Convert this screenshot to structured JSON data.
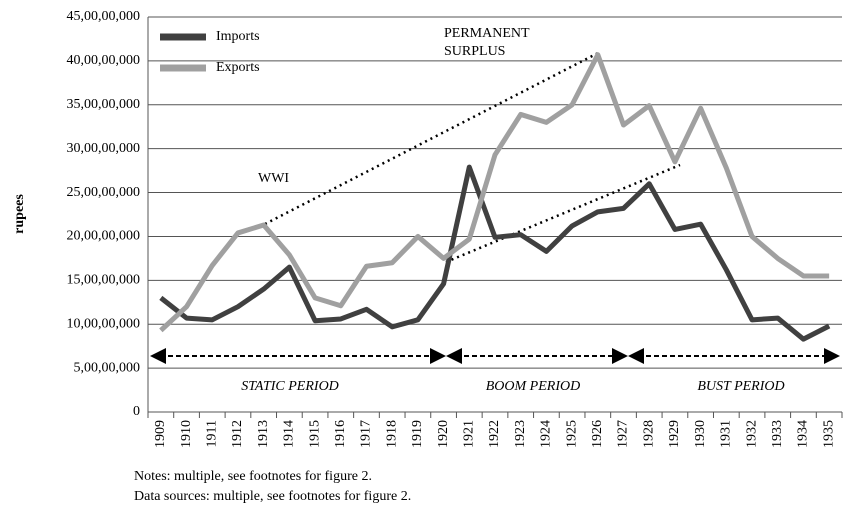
{
  "chart_data": {
    "type": "line",
    "y_label": "rupees",
    "categories": [
      "1909",
      "1910",
      "1911",
      "1912",
      "1913",
      "1914",
      "1915",
      "1916",
      "1917",
      "1918",
      "1919",
      "1920",
      "1921",
      "1922",
      "1923",
      "1924",
      "1925",
      "1926",
      "1927",
      "1928",
      "1929",
      "1930",
      "1931",
      "1932",
      "1933",
      "1934",
      "1935"
    ],
    "series": [
      {
        "name": "Imports",
        "color": "#404040",
        "values": [
          130000000,
          107000000,
          105000000,
          120000000,
          140000000,
          165000000,
          104000000,
          106000000,
          117000000,
          97000000,
          105000000,
          146000000,
          279000000,
          199000000,
          202000000,
          183000000,
          212000000,
          228000000,
          232000000,
          260000000,
          208000000,
          214000000,
          162000000,
          105000000,
          107000000,
          83000000,
          98000000
        ]
      },
      {
        "name": "Exports",
        "color": "#a0a0a0",
        "values": [
          93000000,
          120000000,
          167000000,
          204000000,
          213000000,
          179000000,
          130000000,
          121000000,
          166000000,
          170000000,
          200000000,
          175000000,
          197000000,
          293000000,
          339000000,
          330000000,
          350000000,
          407000000,
          327000000,
          349000000,
          285000000,
          346000000,
          278000000,
          200000000,
          175000000,
          155000000,
          155000000
        ]
      }
    ],
    "ylim": [
      0,
      450000000
    ],
    "yticks": [
      0,
      {
        "value": 50000000,
        "label": "5,00,00,000"
      },
      {
        "value": 100000000,
        "label": "10,00,00,000"
      },
      {
        "value": 150000000,
        "label": "15,00,00,000"
      },
      {
        "value": 200000000,
        "label": "20,00,00,000"
      },
      {
        "value": 250000000,
        "label": "25,00,00,000"
      },
      {
        "value": 300000000,
        "label": "30,00,00,000"
      },
      {
        "value": 350000000,
        "label": "35,00,00,000"
      },
      {
        "value": 400000000,
        "label": "40,00,00,000"
      },
      {
        "value": 450000000,
        "label": "45,00,00,000"
      }
    ],
    "grid": true,
    "legend": "upper-left",
    "annotations": [
      "PERMANENT",
      "SURPLUS",
      "WWI",
      "STATIC PERIOD",
      "BOOM PERIOD",
      "BUST PERIOD"
    ],
    "notes": [
      "Notes: multiple, see footnotes for figure 2.",
      "Data sources: multiple, see footnotes for figure 2."
    ]
  }
}
